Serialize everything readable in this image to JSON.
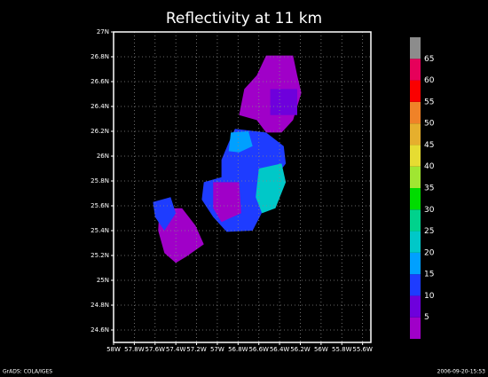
{
  "chart_data": {
    "type": "filled-contour-map",
    "title": "Reflectivity at 11 km",
    "xlim": [
      -58,
      -55.52
    ],
    "ylim": [
      24.5,
      27
    ],
    "xticks": [
      {
        "value": -58,
        "label": "58W"
      },
      {
        "value": -57.8,
        "label": "57.8W"
      },
      {
        "value": -57.6,
        "label": "57.6W"
      },
      {
        "value": -57.4,
        "label": "57.4W"
      },
      {
        "value": -57.2,
        "label": "57.2W"
      },
      {
        "value": -57,
        "label": "57W"
      },
      {
        "value": -56.8,
        "label": "56.8W"
      },
      {
        "value": -56.6,
        "label": "56.6W"
      },
      {
        "value": -56.4,
        "label": "56.4W"
      },
      {
        "value": -56.2,
        "label": "56.2W"
      },
      {
        "value": -56,
        "label": "56W"
      },
      {
        "value": -55.8,
        "label": "55.8W"
      },
      {
        "value": -55.6,
        "label": "55.6W"
      }
    ],
    "yticks": [
      {
        "value": 24.6,
        "label": "24.6N"
      },
      {
        "value": 24.8,
        "label": "24.8N"
      },
      {
        "value": 25,
        "label": "25N"
      },
      {
        "value": 25.2,
        "label": "25.2N"
      },
      {
        "value": 25.4,
        "label": "25.4N"
      },
      {
        "value": 25.6,
        "label": "25.6N"
      },
      {
        "value": 25.8,
        "label": "25.8N"
      },
      {
        "value": 26,
        "label": "26N"
      },
      {
        "value": 26.2,
        "label": "26.2N"
      },
      {
        "value": 26.4,
        "label": "26.4N"
      },
      {
        "value": 26.6,
        "label": "26.6N"
      },
      {
        "value": 26.8,
        "label": "26.8N"
      },
      {
        "value": 27,
        "label": "27N"
      }
    ],
    "grid": true,
    "colorbar": {
      "levels": [
        5,
        10,
        15,
        20,
        25,
        30,
        35,
        40,
        45,
        50,
        55,
        60,
        65
      ],
      "colors": [
        "#a000c8",
        "#6e00dc",
        "#1e3cff",
        "#00a0ff",
        "#00c8c8",
        "#00d28c",
        "#00dc00",
        "#a0e632",
        "#e6dc32",
        "#e6af2d",
        "#f08228",
        "#fa0000",
        "#e6005a",
        "#8c8c8c"
      ]
    },
    "regions": [
      {
        "value": 3,
        "lon": [
          -56.53,
          -56.27,
          -56.23,
          -56.19,
          -56.27,
          -56.38,
          -56.53,
          -56.62,
          -56.79,
          -56.74,
          -56.62
        ],
        "lat": [
          26.81,
          26.81,
          26.65,
          26.51,
          26.29,
          26.19,
          26.19,
          26.29,
          26.33,
          26.54,
          26.65
        ]
      },
      {
        "value": 8,
        "lon": [
          -56.49,
          -56.23,
          -56.23,
          -56.49
        ],
        "lat": [
          26.54,
          26.54,
          26.33,
          26.33
        ]
      },
      {
        "value": 13,
        "lon": [
          -56.83,
          -56.53,
          -56.36,
          -56.34,
          -56.44,
          -56.53,
          -56.66,
          -56.91,
          -57.04,
          -57.15,
          -57.13,
          -56.96,
          -56.96,
          -56.89
        ],
        "lat": [
          26.22,
          26.19,
          26.08,
          25.94,
          25.83,
          25.61,
          25.4,
          25.39,
          25.51,
          25.65,
          25.79,
          25.83,
          25.97,
          26.11
        ]
      },
      {
        "value": 3,
        "lon": [
          -57.04,
          -56.79,
          -56.77,
          -56.96,
          -57.04
        ],
        "lat": [
          25.79,
          25.79,
          25.54,
          25.47,
          25.58
        ]
      },
      {
        "value": 18,
        "lon": [
          -56.87,
          -56.7,
          -56.66,
          -56.79,
          -56.89
        ],
        "lat": [
          26.19,
          26.2,
          26.08,
          26.03,
          26.04
        ]
      },
      {
        "value": 23,
        "lon": [
          -56.6,
          -56.38,
          -56.34,
          -56.44,
          -56.57,
          -56.63
        ],
        "lat": [
          25.9,
          25.94,
          25.79,
          25.58,
          25.54,
          25.67
        ]
      },
      {
        "value": 3,
        "lon": [
          -57.56,
          -57.34,
          -57.21,
          -57.13,
          -57.3,
          -57.4,
          -57.51,
          -57.57
        ],
        "lat": [
          25.58,
          25.58,
          25.44,
          25.29,
          25.19,
          25.14,
          25.22,
          25.4
        ]
      },
      {
        "value": 13,
        "lon": [
          -57.62,
          -57.45,
          -57.4,
          -57.51,
          -57.6
        ],
        "lat": [
          25.63,
          25.67,
          25.54,
          25.4,
          25.51
        ]
      }
    ]
  },
  "footer": {
    "left": "GrADS: COLA/IGES",
    "right": "2006-09-20-15:53"
  }
}
